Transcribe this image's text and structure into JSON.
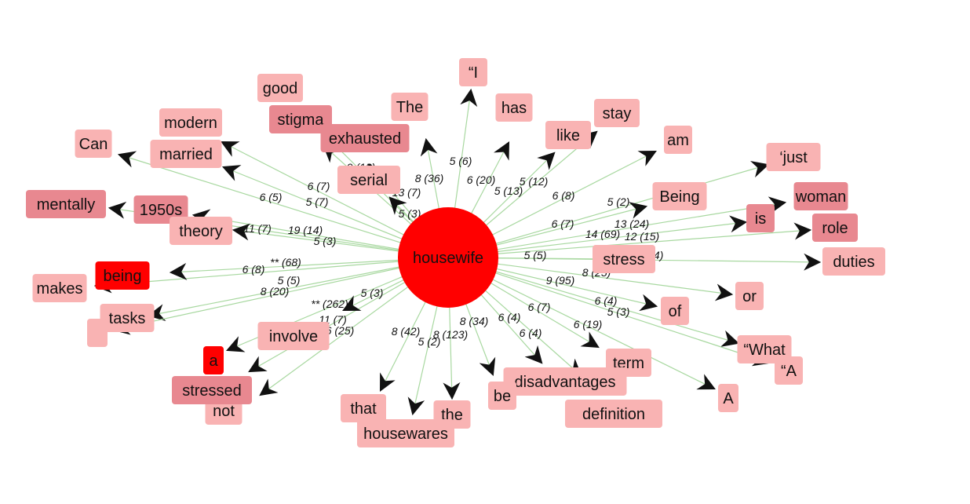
{
  "graph": {
    "center": {
      "label": "housewife",
      "color": "#ff0000"
    },
    "edge_color": "#a8d8a0",
    "arrow_color": "#111111",
    "colors": {
      "light": "#f9b3b3",
      "medium": "#e88890",
      "dark": "#ff0000"
    },
    "nodes": [
      {
        "id": "i",
        "label": "“I",
        "level": "light"
      },
      {
        "id": "has",
        "label": "has",
        "level": "light"
      },
      {
        "id": "stay",
        "label": "stay",
        "level": "light"
      },
      {
        "id": "like",
        "label": "like",
        "level": "light"
      },
      {
        "id": "am",
        "label": "am",
        "level": "light"
      },
      {
        "id": "just",
        "label": "‘just",
        "level": "light"
      },
      {
        "id": "being2",
        "label": "Being",
        "level": "light"
      },
      {
        "id": "woman",
        "label": "woman",
        "level": "medium"
      },
      {
        "id": "is",
        "label": "is",
        "level": "medium"
      },
      {
        "id": "role",
        "label": "role",
        "level": "medium"
      },
      {
        "id": "stress",
        "label": "stress",
        "level": "light"
      },
      {
        "id": "duties",
        "label": "duties",
        "level": "light"
      },
      {
        "id": "or",
        "label": "or",
        "level": "light"
      },
      {
        "id": "of",
        "label": "of",
        "level": "light"
      },
      {
        "id": "what",
        "label": "“What",
        "level": "light"
      },
      {
        "id": "a_quote",
        "label": "“A",
        "level": "light"
      },
      {
        "id": "A",
        "label": "A",
        "level": "light"
      },
      {
        "id": "term",
        "label": "term",
        "level": "light"
      },
      {
        "id": "definition",
        "label": "definition",
        "level": "light"
      },
      {
        "id": "disadvantages",
        "label": "disadvantages",
        "level": "light"
      },
      {
        "id": "be",
        "label": "be",
        "level": "light"
      },
      {
        "id": "the",
        "label": "the",
        "level": "light"
      },
      {
        "id": "housewares",
        "label": "housewares",
        "level": "light"
      },
      {
        "id": "that",
        "label": "that",
        "level": "light"
      },
      {
        "id": "not",
        "label": "not",
        "level": "light"
      },
      {
        "id": "stressed",
        "label": "stressed",
        "level": "medium"
      },
      {
        "id": "a",
        "label": "a",
        "level": "dark"
      },
      {
        "id": "involve",
        "label": "involve",
        "level": "light"
      },
      {
        "id": "tasks",
        "label": "tasks",
        "level": "light"
      },
      {
        "id": "blank",
        "label": "",
        "level": "light"
      },
      {
        "id": "makes",
        "label": "makes",
        "level": "light"
      },
      {
        "id": "being",
        "label": "being",
        "level": "dark"
      },
      {
        "id": "mentally",
        "label": "mentally",
        "level": "medium"
      },
      {
        "id": "1950s",
        "label": "1950s",
        "level": "medium"
      },
      {
        "id": "theory",
        "label": "theory",
        "level": "light"
      },
      {
        "id": "can",
        "label": "Can",
        "level": "light"
      },
      {
        "id": "modern",
        "label": "modern",
        "level": "light"
      },
      {
        "id": "married",
        "label": "married",
        "level": "light"
      },
      {
        "id": "good",
        "label": "good",
        "level": "light"
      },
      {
        "id": "stigma",
        "label": "stigma",
        "level": "medium"
      },
      {
        "id": "exhausted",
        "label": "exhausted",
        "level": "medium"
      },
      {
        "id": "the2",
        "label": "The",
        "level": "light"
      },
      {
        "id": "serial",
        "label": "serial",
        "level": "light"
      }
    ],
    "edges": [
      {
        "target": "i",
        "label": "5 (6)"
      },
      {
        "target": "has",
        "label": "6 (20)"
      },
      {
        "target": "like",
        "label": "5 (12)"
      },
      {
        "target": "stay",
        "label": "5 (13)"
      },
      {
        "target": "am",
        "label": "6 (8)"
      },
      {
        "target": "just",
        "label": "5 (2)"
      },
      {
        "target": "being2",
        "label": "6 (7)"
      },
      {
        "target": "woman",
        "label": "13 (24)"
      },
      {
        "target": "is",
        "label": "14 (69)"
      },
      {
        "target": "role",
        "label": "12 (15)"
      },
      {
        "target": "stress",
        "label": "5 (5)"
      },
      {
        "target": "duties",
        "label": "8 (4)"
      },
      {
        "target": "or",
        "label": "9 (95)"
      },
      {
        "target": "of",
        "label": "8 (25)"
      },
      {
        "target": "what",
        "label": "6 (4)"
      },
      {
        "target": "a_quote",
        "label": "5 (3)"
      },
      {
        "target": "A",
        "label": "6 (19)"
      },
      {
        "target": "term",
        "label": "6 (7)"
      },
      {
        "target": "definition",
        "label": "6 (4)"
      },
      {
        "target": "disadvantages",
        "label": "6 (4)"
      },
      {
        "target": "be",
        "label": "8 (34)"
      },
      {
        "target": "the",
        "label": "8 (123)"
      },
      {
        "target": "housewares",
        "label": "5 (2)"
      },
      {
        "target": "that",
        "label": "8 (42)"
      },
      {
        "target": "not",
        "label": "6 (25)"
      },
      {
        "target": "stressed",
        "label": "11 (7)"
      },
      {
        "target": "a",
        "label": "5 (3)"
      },
      {
        "target": "involve",
        "label": "** (262)"
      },
      {
        "target": "tasks",
        "label": "8 (20)"
      },
      {
        "target": "blank",
        "label": "5 (5)"
      },
      {
        "target": "makes",
        "label": "6 (8)"
      },
      {
        "target": "being",
        "label": "** (68)"
      },
      {
        "target": "mentally",
        "label": "5 (3)"
      },
      {
        "target": "1950s",
        "label": "11 (7)"
      },
      {
        "target": "theory",
        "label": "19 (14)"
      },
      {
        "target": "can",
        "label": "6 (5)"
      },
      {
        "target": "married",
        "label": "5 (7)"
      },
      {
        "target": "modern",
        "label": "6 (7)"
      },
      {
        "target": "stigma",
        "label": "9 (13)"
      },
      {
        "target": "good",
        "label": "12 (3)"
      },
      {
        "target": "exhausted",
        "label": "13 (7)"
      },
      {
        "target": "the2",
        "label": "8 (36)"
      },
      {
        "target": "serial",
        "label": "5 (3)"
      }
    ]
  }
}
